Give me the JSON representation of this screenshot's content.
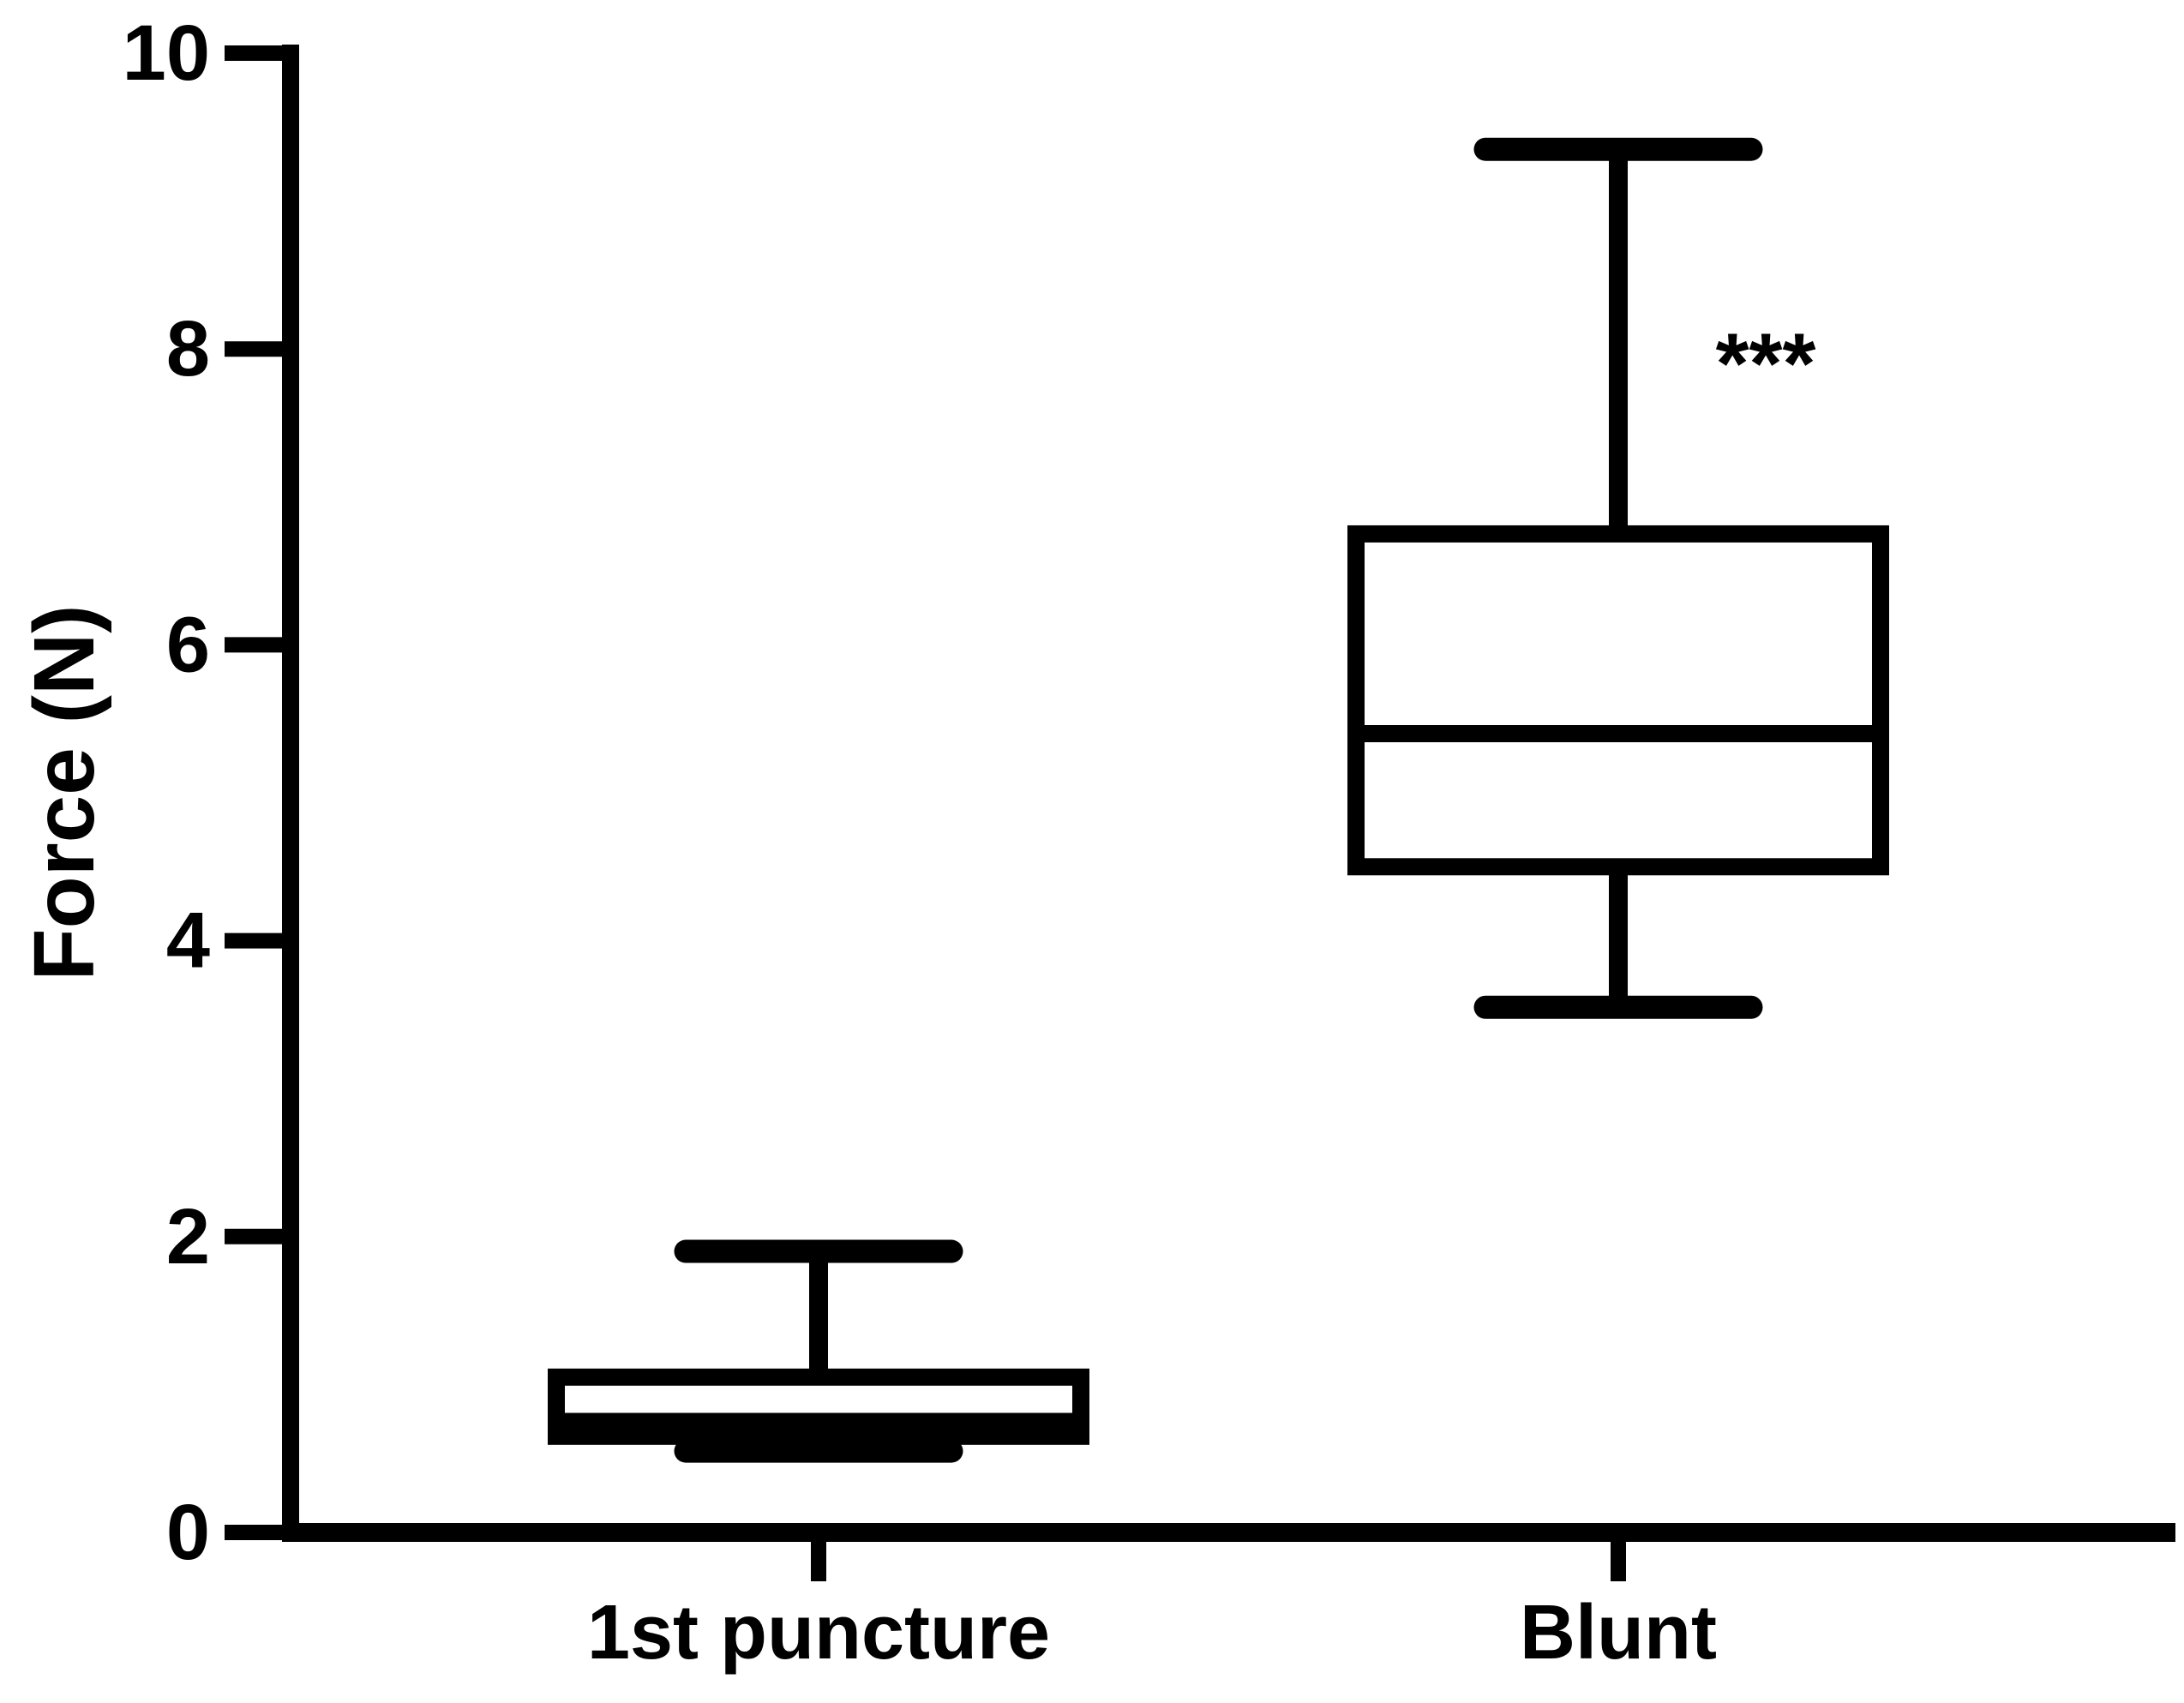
{
  "chart_data": {
    "type": "box",
    "title": "",
    "xlabel": "",
    "ylabel": "Force (N)",
    "ylim": [
      0,
      10
    ],
    "yticks": [
      0,
      2,
      4,
      6,
      8,
      10
    ],
    "categories": [
      "1st puncture",
      "Blunt"
    ],
    "series": [
      {
        "name": "1st puncture",
        "min": 0.55,
        "q1": 0.65,
        "median": 0.75,
        "q3": 1.05,
        "max": 1.9
      },
      {
        "name": "Blunt",
        "min": 3.55,
        "q1": 4.5,
        "median": 5.4,
        "q3": 6.75,
        "max": 9.35
      }
    ],
    "annotations": [
      {
        "text": "***",
        "category": "Blunt",
        "y_value": 7.9,
        "position": "above-right-of-box"
      }
    ],
    "grid": false,
    "legend_position": "none",
    "stroke_color": "#000000",
    "box_fill_color": "#ffffff",
    "background_color": "#ffffff"
  }
}
